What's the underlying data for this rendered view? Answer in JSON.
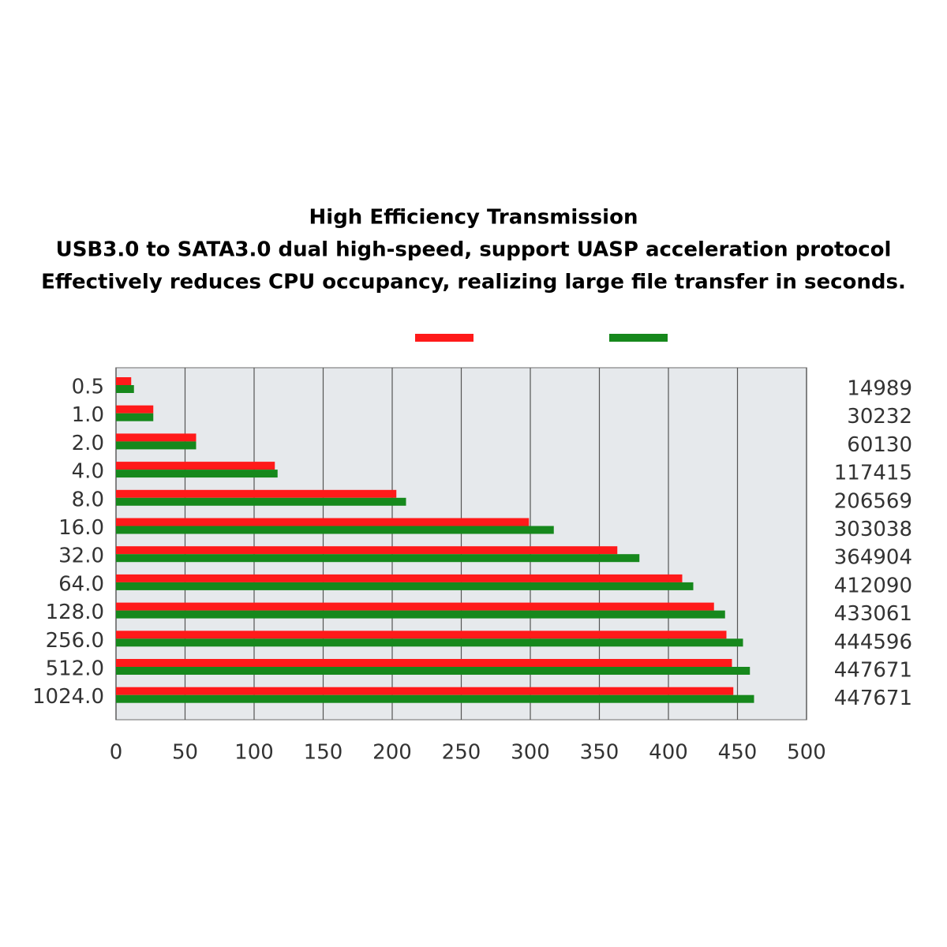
{
  "chart_data": {
    "type": "hbar",
    "title": "High Efficiency Transmission",
    "subtitle": [
      "USB3.0 to SATA3.0 dual high-speed, support UASP acceleration protocol",
      "Effectively reduces CPU occupancy, realizing large file transfer in seconds."
    ],
    "categories": [
      "0.5",
      "1.0",
      "2.0",
      "4.0",
      "8.0",
      "16.0",
      "32.0",
      "64.0",
      "128.0",
      "256.0",
      "512.0",
      "1024.0"
    ],
    "right_labels": [
      14989,
      30232,
      60130,
      117415,
      206569,
      303038,
      364904,
      412090,
      433061,
      444596,
      447671,
      447671
    ],
    "series": [
      {
        "color": "#ff1a1a",
        "values": [
          11,
          27,
          58,
          115,
          203,
          299,
          363,
          410,
          433,
          442,
          446,
          447
        ]
      },
      {
        "color": "#16881c",
        "values": [
          13,
          27,
          58,
          117,
          210,
          317,
          379,
          418,
          441,
          454,
          459,
          462
        ]
      }
    ],
    "xlim": [
      0,
      500
    ],
    "xticks": [
      0,
      50,
      100,
      150,
      200,
      250,
      300,
      350,
      400,
      450,
      500
    ],
    "grid": true
  }
}
